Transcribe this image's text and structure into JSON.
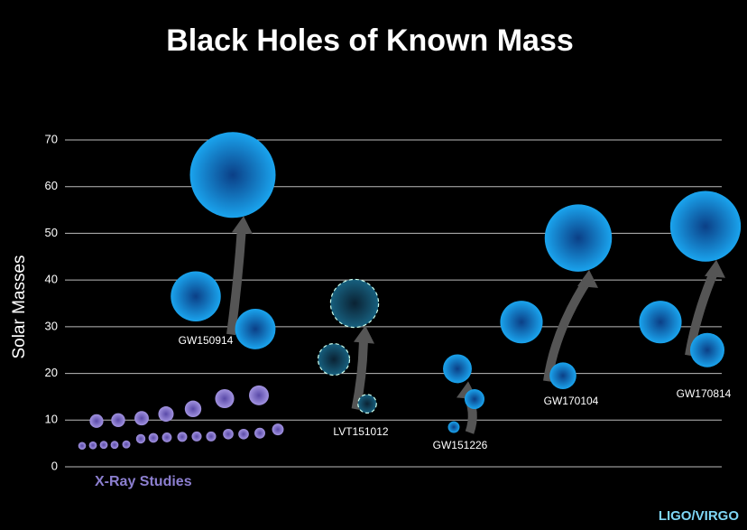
{
  "chart_data": {
    "type": "bubble",
    "title": "Black Holes of Known Mass",
    "ylabel": "Solar Masses",
    "ylim": [
      0,
      70
    ],
    "yticks": [
      0,
      10,
      20,
      30,
      40,
      50,
      60,
      70
    ],
    "grid": true,
    "xray": {
      "name": "X-Ray Studies",
      "color": "#8c7fd0",
      "values": [
        4.5,
        4.6,
        4.7,
        4.7,
        4.8,
        6,
        6.2,
        6.3,
        6.4,
        6.5,
        6.5,
        7,
        7,
        7.2,
        8,
        9.8,
        10,
        10.4,
        11.3,
        12.4,
        14.6,
        15.3
      ]
    },
    "color": "#1a9fe8",
    "events": [
      {
        "name": "GW150914",
        "primary": 36.5,
        "secondary": 29.5,
        "final": 62.5
      },
      {
        "name": "LVT151012",
        "primary": 23,
        "secondary": 13.5,
        "final": 35,
        "dashed": true
      },
      {
        "name": "GW151226",
        "primary": 14.5,
        "secondary": 8.5,
        "final": 21
      },
      {
        "name": "GW170104",
        "primary": 31,
        "secondary": 19.5,
        "final": 49
      },
      {
        "name": "GW170814",
        "primary": 31,
        "secondary": 25,
        "final": 51.5
      }
    ],
    "credit": "LIGO/VIRGO"
  }
}
